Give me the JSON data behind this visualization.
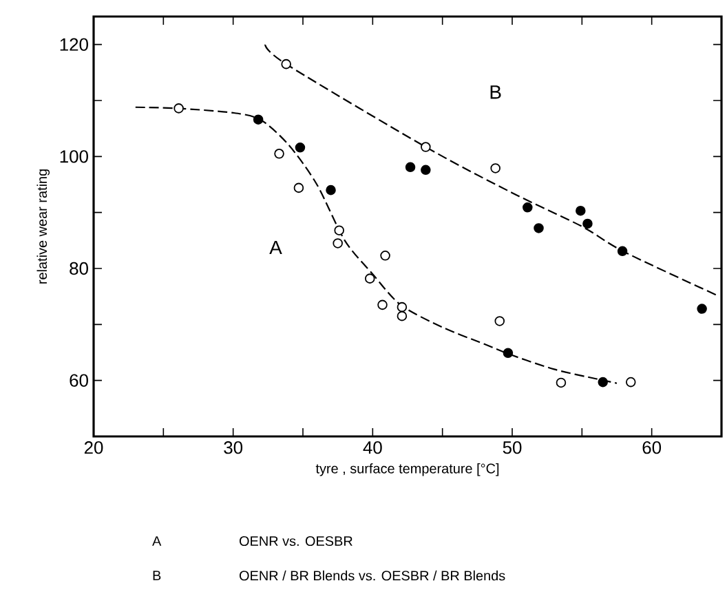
{
  "chart_data": {
    "type": "scatter",
    "xlabel": "tyre , surface temperature [°C]",
    "ylabel": "relative wear rating",
    "xlim": [
      20,
      65
    ],
    "ylim": [
      50,
      125
    ],
    "xticks": [
      20,
      {
        "value": 25,
        "label": null
      },
      30,
      {
        "value": 35,
        "label": null
      },
      40,
      {
        "value": 45,
        "label": null
      },
      50,
      {
        "value": 55,
        "label": null
      },
      60
    ],
    "yticks": [
      60,
      {
        "value": 70,
        "label": null
      },
      80,
      {
        "value": 90,
        "label": null
      },
      100,
      {
        "value": 110,
        "label": null
      },
      120
    ],
    "grid": false,
    "series": [
      {
        "color": "#ffffff",
        "marker": "circle",
        "x": [
          26.1,
          33.8,
          33.3,
          34.7,
          37.6,
          37.5,
          40.9,
          39.8,
          40.7,
          42.1,
          42.1,
          43.8,
          48.8,
          49.1,
          53.5,
          58.5
        ],
        "values": [
          108.6,
          116.5,
          100.5,
          94.4,
          86.8,
          84.5,
          82.3,
          78.2,
          73.5,
          73.1,
          71.5,
          101.7,
          97.9,
          70.6,
          59.6,
          59.7
        ]
      },
      {
        "color": "#000000",
        "marker": "circle",
        "x": [
          31.8,
          34.8,
          37.0,
          42.7,
          43.8,
          51.1,
          51.9,
          54.9,
          55.4,
          57.9,
          63.6,
          49.7,
          56.5
        ],
        "values": [
          106.6,
          101.6,
          94.0,
          98.1,
          97.6,
          90.9,
          87.2,
          90.3,
          88.0,
          83.1,
          72.8,
          64.9,
          59.7
        ]
      },
      {
        "type": "line",
        "color": "#000000",
        "line_style": "dashed",
        "marker": "none",
        "x": [
          23,
          26,
          30,
          32,
          34,
          36,
          38,
          40,
          42,
          45,
          48,
          50,
          53,
          56,
          57.5
        ],
        "values": [
          108.8,
          108.6,
          107.8,
          106.5,
          102,
          95,
          85,
          79,
          73.5,
          69.5,
          66.5,
          64.5,
          62,
          60.3,
          59.5
        ]
      },
      {
        "type": "line",
        "color": "#000000",
        "line_style": "dashed",
        "marker": "none",
        "x": [
          32.3,
          33.8,
          43.8,
          50,
          55,
          58,
          64.6
        ],
        "values": [
          120,
          116.5,
          101.7,
          93.5,
          87.5,
          83,
          75.3
        ]
      }
    ],
    "annotations": [
      "A",
      "B",
      "A",
      "OENR vs. OESBR",
      "B",
      "OENR / BR Blends vs. OESBR / BR Blends"
    ]
  }
}
